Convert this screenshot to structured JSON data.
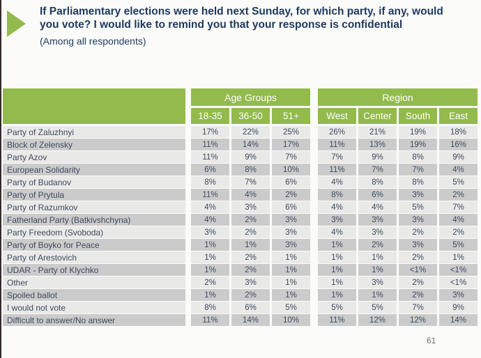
{
  "slide": {
    "title": "If Parliamentary elections were held next Sunday, for which party, if any, would you vote? I would like to remind you that your response is confidential",
    "subtitle": "(Among all respondents)",
    "page_number": "61"
  },
  "colors": {
    "accent_green": "#93ba4d",
    "title_navy": "#1f3a60",
    "cell_text": "#3e4a5e",
    "row_light": "#e9e9e7",
    "row_dark": "#cbcbcb"
  },
  "icons": {
    "bullet": "triangle-right-icon"
  },
  "table": {
    "group_headers": {
      "age": "Age Groups",
      "region": "Region"
    },
    "column_headers": [
      "18-35",
      "36-50",
      "51+",
      "West",
      "Center",
      "South",
      "East"
    ],
    "rows": [
      {
        "label": "Party of Zaluzhnyi",
        "values": [
          "17%",
          "22%",
          "25%",
          "26%",
          "21%",
          "19%",
          "18%"
        ]
      },
      {
        "label": "Block of Zelensky",
        "values": [
          "11%",
          "14%",
          "17%",
          "11%",
          "13%",
          "19%",
          "16%"
        ]
      },
      {
        "label": "Party Azov",
        "values": [
          "11%",
          "9%",
          "7%",
          "7%",
          "9%",
          "8%",
          "9%"
        ]
      },
      {
        "label": "European Solidarity",
        "values": [
          "6%",
          "8%",
          "10%",
          "11%",
          "7%",
          "7%",
          "4%"
        ]
      },
      {
        "label": "Party of Budanov",
        "values": [
          "8%",
          "7%",
          "6%",
          "4%",
          "8%",
          "8%",
          "5%"
        ]
      },
      {
        "label": "Party of Prytula",
        "values": [
          "11%",
          "4%",
          "2%",
          "8%",
          "6%",
          "3%",
          "2%"
        ]
      },
      {
        "label": "Party of Razumkov",
        "values": [
          "4%",
          "3%",
          "6%",
          "4%",
          "4%",
          "5%",
          "7%"
        ]
      },
      {
        "label": "Fatherland Party (Batkivshchyna)",
        "values": [
          "4%",
          "2%",
          "3%",
          "3%",
          "3%",
          "3%",
          "4%"
        ]
      },
      {
        "label": "Party Freedom (Svoboda)",
        "values": [
          "3%",
          "2%",
          "3%",
          "4%",
          "3%",
          "2%",
          "2%"
        ]
      },
      {
        "label": "Party of Boyko for Peace",
        "values": [
          "1%",
          "1%",
          "3%",
          "1%",
          "2%",
          "3%",
          "5%"
        ]
      },
      {
        "label": "Party of Arestovich",
        "values": [
          "1%",
          "2%",
          "1%",
          "1%",
          "1%",
          "2%",
          "1%"
        ]
      },
      {
        "label": "UDAR - Party of Klychko",
        "values": [
          "1%",
          "2%",
          "1%",
          "1%",
          "1%",
          "<1%",
          "<1%"
        ]
      },
      {
        "label": "Other",
        "values": [
          "2%",
          "3%",
          "1%",
          "1%",
          "3%",
          "2%",
          "<1%"
        ]
      },
      {
        "label": "Spoiled ballot",
        "values": [
          "1%",
          "2%",
          "1%",
          "1%",
          "1%",
          "2%",
          "3%"
        ]
      },
      {
        "label": "I would not vote",
        "values": [
          "8%",
          "6%",
          "5%",
          "5%",
          "5%",
          "7%",
          "9%"
        ]
      },
      {
        "label": "Difficult to answer/No answer",
        "values": [
          "11%",
          "14%",
          "10%",
          "11%",
          "12%",
          "12%",
          "14%"
        ]
      }
    ]
  }
}
